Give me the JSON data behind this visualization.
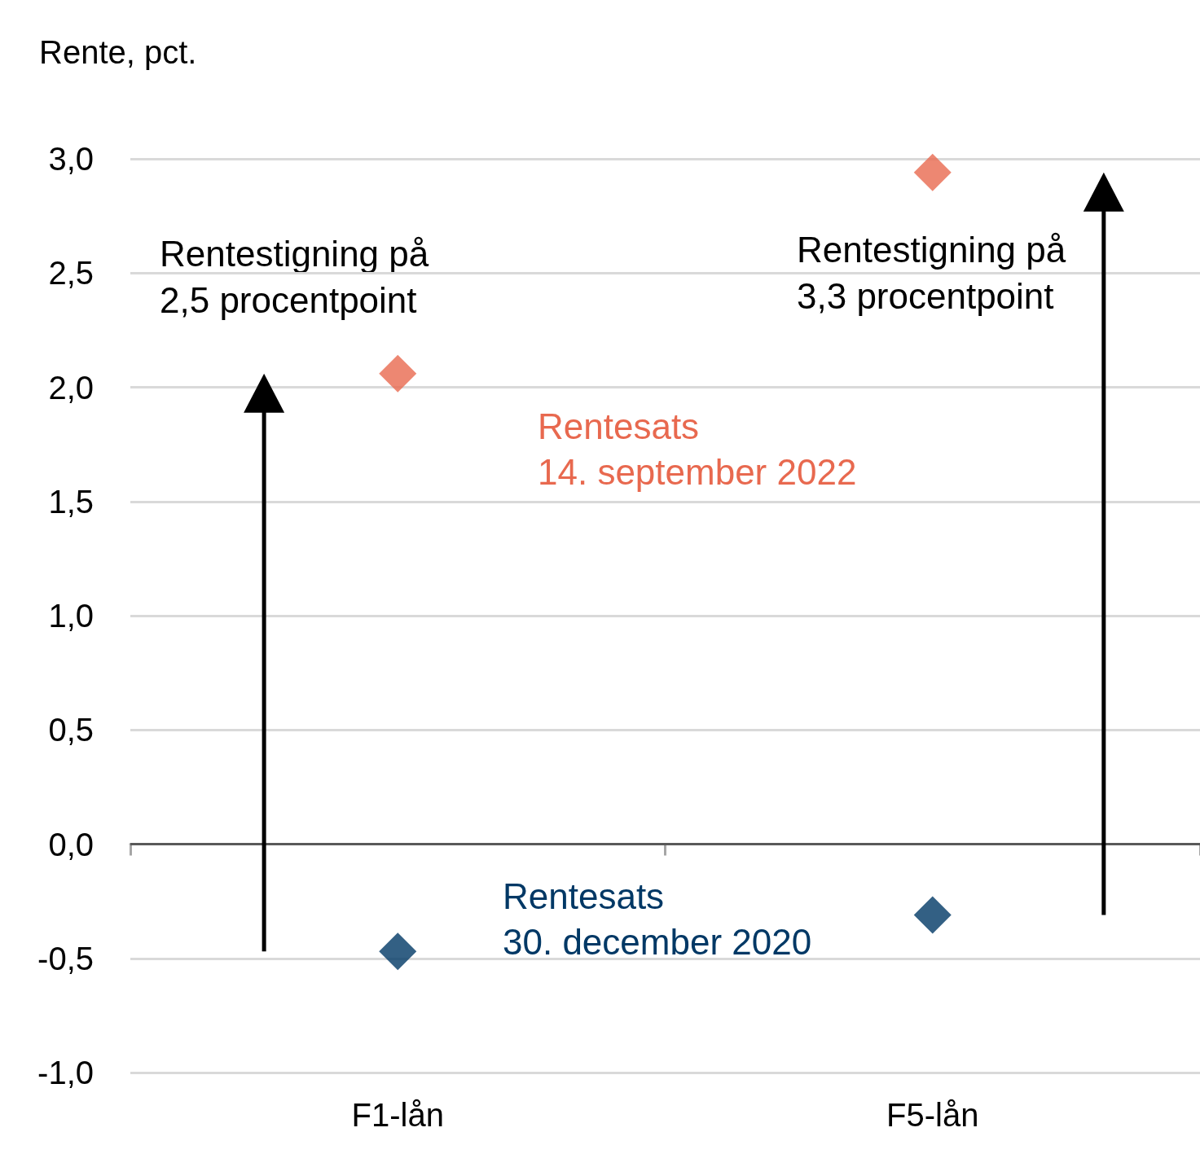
{
  "chart_data": {
    "type": "scatter",
    "ylabel": "Rente, pct.",
    "categories": [
      "F1-lån",
      "F5-lån"
    ],
    "series": [
      {
        "name": "Rentesats\n14. september 2022",
        "color": "#e8694f",
        "values": [
          2.06,
          2.94
        ]
      },
      {
        "name": "Rentesats\n30. december 2020",
        "color": "#003865",
        "values": [
          -0.47,
          -0.31
        ]
      }
    ],
    "ylim": [
      -1,
      3
    ],
    "yticks": [
      {
        "value": -1,
        "label": "-1,0"
      },
      {
        "value": -0.5,
        "label": "-0,5"
      },
      {
        "value": 0,
        "label": "0,0"
      },
      {
        "value": 0.5,
        "label": "0,5"
      },
      {
        "value": 1,
        "label": "1,0"
      },
      {
        "value": 1.5,
        "label": "1,5"
      },
      {
        "value": 2,
        "label": "2,0"
      },
      {
        "value": 2.5,
        "label": "2,5"
      },
      {
        "value": 3,
        "label": "3,0"
      }
    ],
    "ref_lines": [
      {
        "axis": "y",
        "value": 0,
        "color": "#595959"
      }
    ],
    "annotations": [
      "Rentestigning på\n2,5 procentpoint",
      "Rentestigning på\n3,3 procentpoint"
    ],
    "grid": "y",
    "legend": false,
    "marker": "diamond"
  }
}
